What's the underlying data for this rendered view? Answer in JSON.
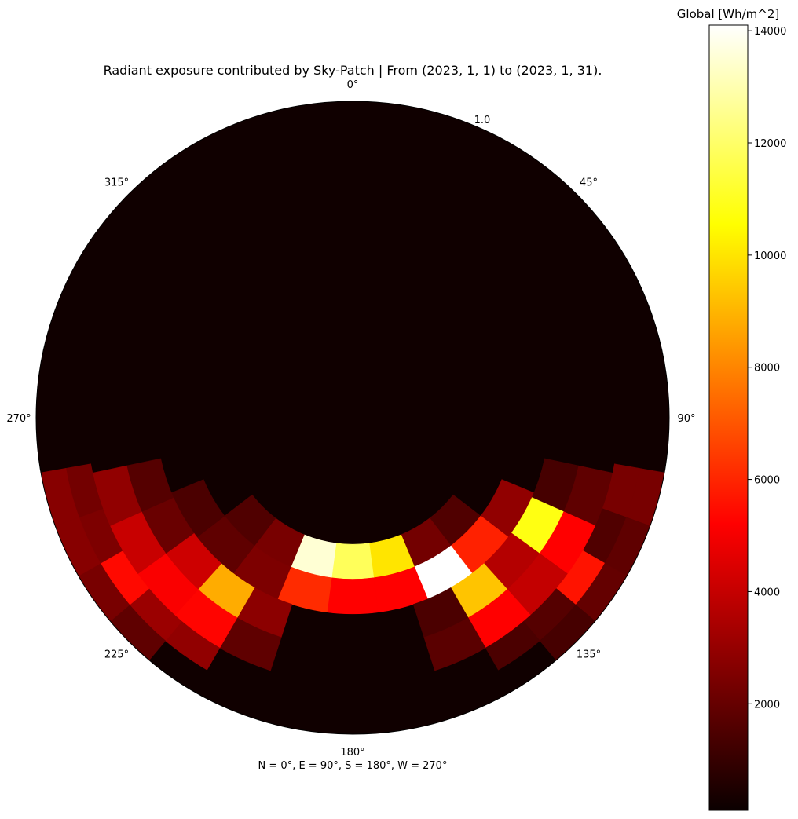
{
  "chart_data": {
    "type": "heatmap",
    "projection": "polar",
    "title": "Radiant exposure contributed by Sky-Patch  | From (2023, 1, 1) to (2023, 1, 31).",
    "angular_tick_labels": [
      "0°",
      "45°",
      "90°",
      "135°",
      "180°",
      "225°",
      "270°",
      "315°"
    ],
    "radial_tick_label": "1.0",
    "direction_note": "N = 0°, E = 90°, S = 180°, W = 270°",
    "colorbar": {
      "label": "Global [Wh/m^2]",
      "colormap": "hot",
      "range": [
        100,
        14100
      ],
      "ticks": [
        2000,
        4000,
        6000,
        8000,
        10000,
        12000,
        14000
      ]
    },
    "background_value": 500,
    "patch_rings": [
      {
        "r_inner": 0.4,
        "r_outer": 0.51,
        "azimuth_step": 15,
        "cells": [
          {
            "az": 135,
            "value": 1500
          },
          {
            "az": 150,
            "value": 2200
          },
          {
            "az": 165,
            "value": 10000
          },
          {
            "az": 180,
            "value": 11800
          },
          {
            "az": 195,
            "value": 13500
          },
          {
            "az": 210,
            "value": 2300
          },
          {
            "az": 225,
            "value": 1500
          }
        ]
      },
      {
        "r_inner": 0.51,
        "r_outer": 0.62,
        "azimuth_step": 15,
        "cells": [
          {
            "az": 120,
            "value": 2800
          },
          {
            "az": 135,
            "value": 5900
          },
          {
            "az": 150,
            "value": 14100
          },
          {
            "az": 165,
            "value": 5200
          },
          {
            "az": 180,
            "value": 5000
          },
          {
            "az": 195,
            "value": 6100
          },
          {
            "az": 210,
            "value": 2400
          },
          {
            "az": 225,
            "value": 1800
          },
          {
            "az": 240,
            "value": 1400
          }
        ]
      },
      {
        "r_inner": 0.62,
        "r_outer": 0.73,
        "azimuth_step": 12,
        "cells": [
          {
            "az": 108,
            "value": 1300
          },
          {
            "az": 120,
            "value": 10800
          },
          {
            "az": 132,
            "value": 3500
          },
          {
            "az": 144,
            "value": 9300
          },
          {
            "az": 156,
            "value": 1400
          },
          {
            "az": 204,
            "value": 2700
          },
          {
            "az": 216,
            "value": 8800
          },
          {
            "az": 228,
            "value": 4000
          },
          {
            "az": 240,
            "value": 2000
          },
          {
            "az": 252,
            "value": 1600
          }
        ]
      },
      {
        "r_inner": 0.73,
        "r_outer": 0.84,
        "azimuth_step": 12,
        "cells": [
          {
            "az": 108,
            "value": 1800
          },
          {
            "az": 120,
            "value": 5200
          },
          {
            "az": 132,
            "value": 3800
          },
          {
            "az": 144,
            "value": 5100
          },
          {
            "az": 156,
            "value": 1700
          },
          {
            "az": 204,
            "value": 1800
          },
          {
            "az": 216,
            "value": 5300
          },
          {
            "az": 228,
            "value": 4900
          },
          {
            "az": 240,
            "value": 3900
          },
          {
            "az": 252,
            "value": 2800
          }
        ]
      },
      {
        "r_inner": 0.84,
        "r_outer": 0.92,
        "azimuth_step": 10,
        "cells": [
          {
            "az": 105,
            "value": 2300
          },
          {
            "az": 115,
            "value": 1500
          },
          {
            "az": 125,
            "value": 5600
          },
          {
            "az": 135,
            "value": 1600
          },
          {
            "az": 145,
            "value": 1400
          },
          {
            "az": 215,
            "value": 2800
          },
          {
            "az": 225,
            "value": 3000
          },
          {
            "az": 235,
            "value": 5400
          },
          {
            "az": 245,
            "value": 2400
          },
          {
            "az": 255,
            "value": 2200
          }
        ]
      },
      {
        "r_inner": 0.92,
        "r_outer": 1.0,
        "azimuth_step": 10,
        "cells": [
          {
            "az": 105,
            "value": 2300
          },
          {
            "az": 115,
            "value": 1800
          },
          {
            "az": 125,
            "value": 1900
          },
          {
            "az": 135,
            "value": 1300
          },
          {
            "az": 225,
            "value": 1800
          },
          {
            "az": 235,
            "value": 2300
          },
          {
            "az": 245,
            "value": 2600
          },
          {
            "az": 255,
            "value": 2600
          }
        ]
      }
    ]
  }
}
